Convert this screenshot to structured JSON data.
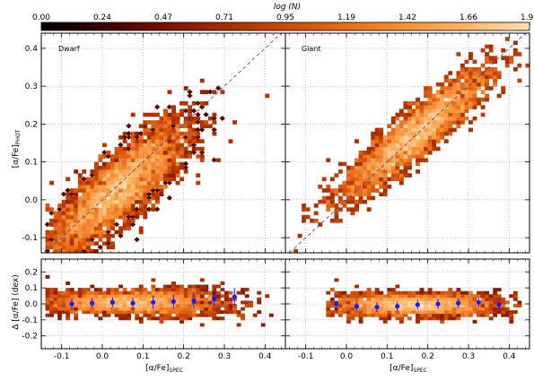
{
  "colorbar": {
    "title": "log (N)",
    "ticks": [
      "0.00",
      "0.24",
      "0.47",
      "0.71",
      "0.95",
      "1.19",
      "1.42",
      "1.66",
      "1.90"
    ],
    "range": [
      0.0,
      1.9
    ],
    "colormap": [
      "#000000",
      "#3a0000",
      "#7a0f00",
      "#a82a00",
      "#cc4a06",
      "#e86c1a",
      "#f89138",
      "#ffb566",
      "#ffe1b8"
    ]
  },
  "chart_data": [
    {
      "type": "heatmap",
      "panel": "top-left",
      "label": "Dwarf",
      "xlabel": "[α/Fe]SPEC",
      "ylabel": "[α/Fe]PHOT",
      "xlim": [
        -0.15,
        0.45
      ],
      "ylim": [
        -0.14,
        0.44
      ],
      "xticks": [
        -0.1,
        0.0,
        0.1,
        0.2,
        0.3,
        0.4
      ],
      "yticks": [
        -0.1,
        0.0,
        0.1,
        0.2,
        0.3,
        0.4
      ],
      "grid": true,
      "one_to_one_line": true,
      "density_ridge": {
        "x": [
          -0.13,
          -0.05,
          0.0,
          0.05,
          0.1,
          0.2,
          0.3,
          0.4
        ],
        "y": [
          -0.09,
          -0.02,
          0.02,
          0.06,
          0.11,
          0.19,
          0.27,
          0.35
        ]
      },
      "peak": {
        "x": 0.03,
        "y": 0.04
      }
    },
    {
      "type": "heatmap",
      "panel": "top-right",
      "label": "Giant",
      "xlabel": "[α/Fe]SPEC",
      "ylabel": "",
      "xlim": [
        -0.15,
        0.45
      ],
      "ylim": [
        -0.14,
        0.44
      ],
      "xticks": [
        -0.1,
        0.0,
        0.1,
        0.2,
        0.3,
        0.4
      ],
      "yticks": [
        -0.1,
        0.0,
        0.1,
        0.2,
        0.3,
        0.4
      ],
      "grid": true,
      "one_to_one_line": true,
      "density_ridge": {
        "x": [
          -0.1,
          0.0,
          0.1,
          0.2,
          0.3,
          0.4
        ],
        "y": [
          -0.08,
          0.03,
          0.12,
          0.2,
          0.28,
          0.37
        ]
      },
      "peak": {
        "x": 0.2,
        "y": 0.21
      }
    },
    {
      "type": "heatmap",
      "panel": "bottom-left",
      "xlabel": "[α/Fe]SPEC",
      "ylabel": "Δ [α/Fe] (dex)",
      "xlim": [
        -0.15,
        0.45
      ],
      "ylim": [
        -0.28,
        0.28
      ],
      "xticks": [
        -0.1,
        0.0,
        0.1,
        0.2,
        0.3,
        0.4
      ],
      "yticks": [
        -0.2,
        -0.1,
        0.0,
        0.1,
        0.2
      ],
      "grid": true,
      "binned_means": {
        "x": [
          -0.075,
          -0.025,
          0.025,
          0.075,
          0.125,
          0.175,
          0.225,
          0.275,
          0.325
        ],
        "y": [
          0.0,
          0.005,
          0.01,
          0.005,
          0.01,
          0.015,
          0.02,
          0.03,
          0.045
        ],
        "err": [
          0.035,
          0.03,
          0.03,
          0.035,
          0.04,
          0.045,
          0.05,
          0.05,
          0.055
        ]
      }
    },
    {
      "type": "heatmap",
      "panel": "bottom-right",
      "xlabel": "[α/Fe]SPEC",
      "ylabel": "",
      "xlim": [
        -0.15,
        0.45
      ],
      "ylim": [
        -0.28,
        0.28
      ],
      "xticks": [
        -0.1,
        0.0,
        0.1,
        0.2,
        0.3,
        0.4
      ],
      "yticks": [
        -0.2,
        -0.1,
        0.0,
        0.1,
        0.2
      ],
      "grid": true,
      "binned_means": {
        "x": [
          -0.025,
          0.025,
          0.075,
          0.125,
          0.175,
          0.225,
          0.275,
          0.325,
          0.375
        ],
        "y": [
          0.0,
          -0.015,
          -0.02,
          -0.015,
          -0.005,
          0.0,
          0.005,
          0.01,
          -0.005
        ],
        "err": [
          0.02,
          0.03,
          0.03,
          0.03,
          0.03,
          0.03,
          0.03,
          0.03,
          0.025
        ]
      }
    }
  ]
}
